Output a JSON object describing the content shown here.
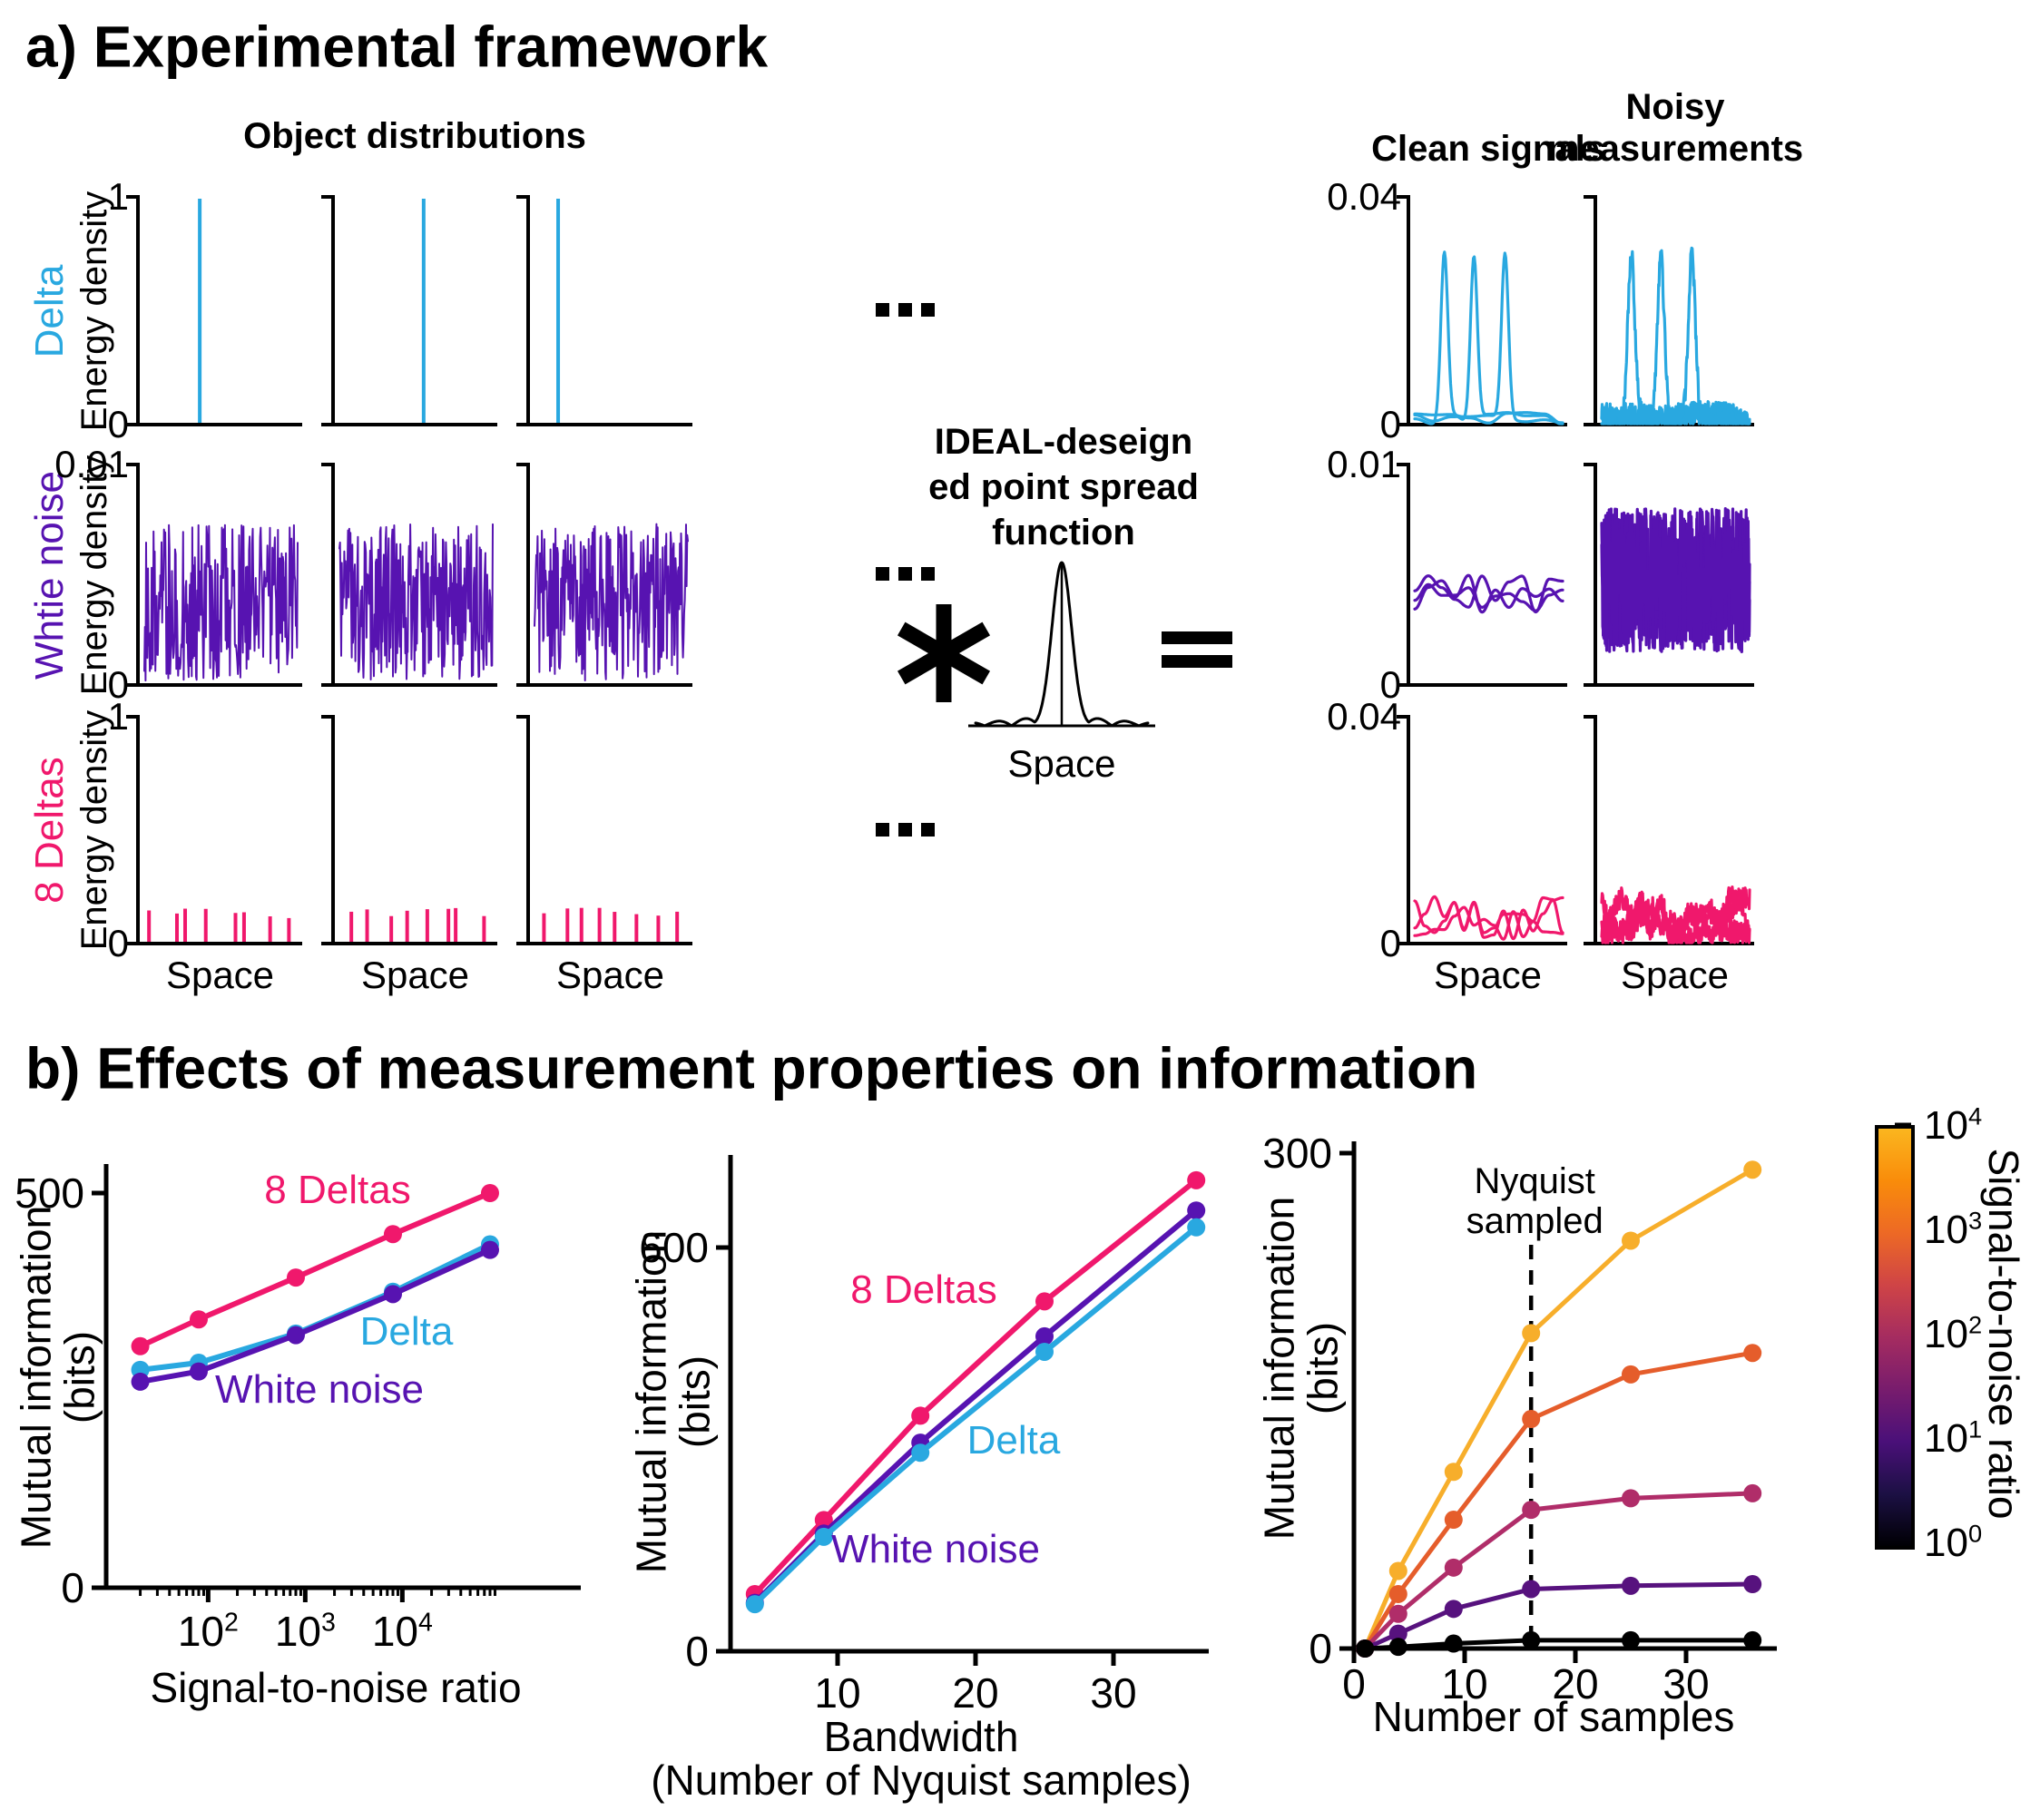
{
  "panel_a": {
    "title": "a) Experimental framework",
    "object_header": "Object distributions",
    "clean_header": "Clean signals",
    "noisy_header_line1": "Noisy",
    "noisy_header_line2": "measurements",
    "psf_label_line1": "IDEAL-deseign",
    "psf_label_line2": "ed point spread",
    "psf_label_line3": "function",
    "psf_xlabel": "Space",
    "space_label": "Space",
    "energy_label": "Energy density",
    "convolution_symbol": "*",
    "equals_symbol": "=",
    "ellipsis": "...",
    "rows": [
      {
        "name": "Delta",
        "color": "#29A8E0",
        "object_ymax": "1",
        "object_ymin": "0",
        "signal_ymax": "0.04",
        "signal_ymin": "0",
        "object_kind": "delta",
        "delta_positions": [
          0.36,
          0.55,
          0.15
        ],
        "signal_peaks": [
          0.2,
          0.4,
          0.61
        ],
        "signal_amp": 0.73
      },
      {
        "name": "Whtie noise",
        "color": "#5713B1",
        "object_ymax": "0.01",
        "object_ymin": "0",
        "signal_ymax": "0.01",
        "signal_ymin": "0",
        "object_kind": "noise",
        "object_band": [
          0.02,
          0.73
        ],
        "clean_band": [
          0.33,
          0.5
        ],
        "noisy_band": [
          0.15,
          0.8
        ]
      },
      {
        "name": "8 Deltas",
        "color": "#F0186C",
        "object_ymax": "1",
        "object_ymin": "0",
        "signal_ymax": "0.04",
        "signal_ymin": "0",
        "object_kind": "spikes",
        "spike_count": 8,
        "spike_height": [
          0.11,
          0.16
        ],
        "clean_wave": [
          0.015,
          0.21
        ],
        "noisy_jitter": 0.05
      }
    ]
  },
  "panel_b": {
    "title": "b) Effects of measurement properties on information"
  },
  "chart_data": [
    {
      "id": "snr",
      "type": "line",
      "title": "",
      "xlabel": "Signal-to-noise ratio",
      "ylabel_line1": "Mutual information",
      "ylabel_line2": "(bits)",
      "xscale": "log",
      "xticks": [
        "10^2",
        "10^3",
        "10^4"
      ],
      "yticks": [
        "0",
        "500"
      ],
      "ylim": [
        0,
        538
      ],
      "x": [
        20,
        80,
        800,
        8000,
        80000
      ],
      "series": [
        {
          "name": "8 Deltas",
          "color": "#F0186C",
          "values": [
            306,
            340,
            393,
            448,
            500
          ]
        },
        {
          "name": "Delta",
          "color": "#29A8E0",
          "values": [
            276,
            285,
            322,
            375,
            435
          ]
        },
        {
          "name": "White noise",
          "color": "#5713B1",
          "values": [
            261,
            274,
            320,
            372,
            428
          ]
        }
      ],
      "legend_position": "inline-labels",
      "grid": false
    },
    {
      "id": "bandwidth",
      "type": "line",
      "title": "",
      "xlabel_line1": "Bandwidth",
      "xlabel_line2": "(Number of Nyquist samples)",
      "ylabel_line1": "Mutual information",
      "ylabel_line2": "(bits)",
      "xscale": "linear",
      "xticks": [
        "10",
        "20",
        "30"
      ],
      "yticks": [
        "0",
        "600"
      ],
      "ylim": [
        0,
        737
      ],
      "xlim": [
        2,
        38
      ],
      "x": [
        4,
        9,
        16,
        25,
        36
      ],
      "series": [
        {
          "name": "8 Deltas",
          "color": "#F0186C",
          "values": [
            85,
            195,
            350,
            520,
            700
          ]
        },
        {
          "name": "White noise",
          "color": "#5713B1",
          "values": [
            72,
            175,
            310,
            468,
            655
          ]
        },
        {
          "name": "Delta",
          "color": "#29A8E0",
          "values": [
            70,
            170,
            295,
            445,
            630
          ]
        }
      ],
      "legend_position": "inline-labels",
      "grid": false
    },
    {
      "id": "samples",
      "type": "line",
      "title": "",
      "xlabel": "Number of samples",
      "ylabel_line1": "Mutual information",
      "ylabel_line2": "(bits)",
      "xscale": "linear",
      "xticks": [
        "0",
        "10",
        "20",
        "30"
      ],
      "yticks": [
        "0",
        "300"
      ],
      "ylim": [
        0,
        306
      ],
      "xlim": [
        0,
        38
      ],
      "annotation_line1": "Nyquist",
      "annotation_line2": "sampled",
      "annotation_x": 16,
      "x": [
        1,
        4,
        9,
        16,
        25,
        36
      ],
      "series": [
        {
          "name": "SNR 10^4",
          "color": "#F7AE2B",
          "values": [
            0,
            47,
            107,
            191,
            247,
            290
          ]
        },
        {
          "name": "SNR 10^3",
          "color": "#E55D2B",
          "values": [
            0,
            33,
            78,
            139,
            166,
            179
          ]
        },
        {
          "name": "SNR 10^2",
          "color": "#B02D69",
          "values": [
            0,
            21,
            49,
            84,
            91,
            94
          ]
        },
        {
          "name": "SNR 10^1",
          "color": "#57127E",
          "values": [
            0,
            9,
            24,
            36,
            38,
            39
          ]
        },
        {
          "name": "SNR 10^0",
          "color": "#000000",
          "values": [
            0,
            1,
            3,
            5,
            5,
            5
          ]
        }
      ],
      "colorbar": {
        "title": "Signal-to-noise ratio",
        "ticks": [
          "10^0",
          "10^1",
          "10^2",
          "10^3",
          "10^4"
        ],
        "gradient_top_to_bottom": [
          "#FBB61F",
          "#F98C0A",
          "#ED6925",
          "#CF4446",
          "#A52C60",
          "#781C6D",
          "#4A1079",
          "#1C1044",
          "#000004"
        ]
      },
      "grid": false
    }
  ]
}
